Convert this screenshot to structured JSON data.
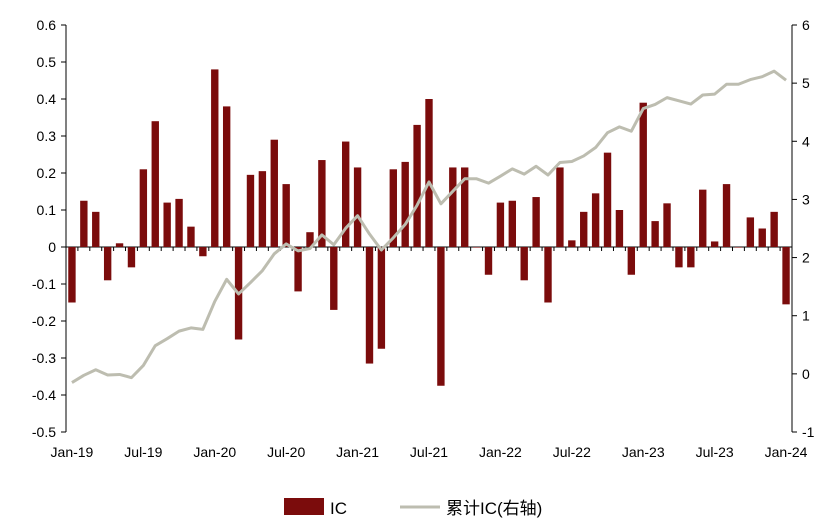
{
  "chart_data": {
    "type": "bar+line",
    "x_labels": [
      "Jan-19",
      "Jul-19",
      "Jan-20",
      "Jul-20",
      "Jan-21",
      "Jul-21",
      "Jan-22",
      "Jul-22",
      "Jan-23",
      "Jul-23",
      "Jan-24"
    ],
    "y_left_ticks": [
      "0.6",
      "0.5",
      "0.4",
      "0.3",
      "0.2",
      "0.1",
      "0",
      "-0.1",
      "-0.2",
      "-0.3",
      "-0.4",
      "-0.5"
    ],
    "y_right_ticks": [
      "6",
      "5",
      "4",
      "3",
      "2",
      "1",
      "0",
      "-1"
    ],
    "ylim_left": [
      -0.5,
      0.6
    ],
    "ylim_right": [
      -1,
      6
    ],
    "grid": false,
    "legend_position": "bottom",
    "series": [
      {
        "name": "IC",
        "kind": "bar",
        "axis": "left",
        "color": "#7B0C0C",
        "values": [
          -0.15,
          0.125,
          0.095,
          -0.09,
          0.01,
          -0.055,
          0.21,
          0.34,
          0.12,
          0.13,
          0.055,
          -0.025,
          0.48,
          0.38,
          -0.25,
          0.195,
          0.205,
          0.29,
          0.17,
          -0.12,
          0.04,
          0.235,
          -0.17,
          0.285,
          0.215,
          -0.315,
          -0.275,
          0.21,
          0.23,
          0.33,
          0.4,
          -0.375,
          0.215,
          0.215,
          0.0,
          -0.075,
          0.12,
          0.125,
          -0.09,
          0.135,
          -0.15,
          0.215,
          0.018,
          0.095,
          0.145,
          0.255,
          0.1,
          -0.075,
          0.39,
          0.07,
          0.118,
          -0.055,
          -0.055,
          0.155,
          0.015,
          0.17,
          0.0,
          0.08,
          0.05,
          0.095,
          -0.155
        ]
      },
      {
        "name": "累计IC(右轴)",
        "kind": "line",
        "axis": "right",
        "color": "#BDBDB0",
        "values": [
          -0.15,
          -0.025,
          0.07,
          -0.02,
          -0.01,
          -0.065,
          0.145,
          0.485,
          0.605,
          0.735,
          0.79,
          0.765,
          1.245,
          1.625,
          1.375,
          1.57,
          1.775,
          2.065,
          2.235,
          2.115,
          2.155,
          2.39,
          2.22,
          2.505,
          2.72,
          2.405,
          2.13,
          2.34,
          2.57,
          2.9,
          3.3,
          2.925,
          3.14,
          3.355,
          3.355,
          3.28,
          3.4,
          3.525,
          3.435,
          3.57,
          3.42,
          3.635,
          3.653,
          3.748,
          3.893,
          4.148,
          4.248,
          4.173,
          4.563,
          4.633,
          4.751,
          4.696,
          4.641,
          4.796,
          4.811,
          4.981,
          4.981,
          5.061,
          5.111,
          5.206,
          5.051
        ]
      }
    ]
  }
}
